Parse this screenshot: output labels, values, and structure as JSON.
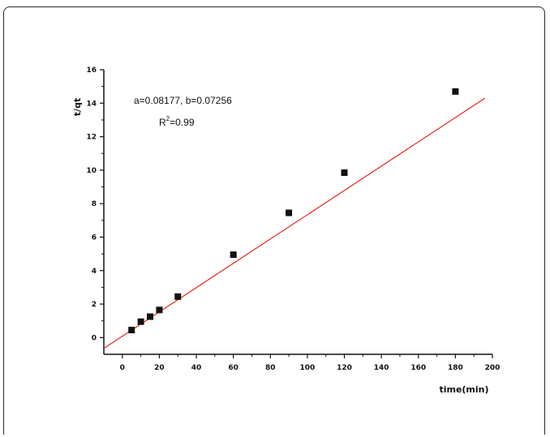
{
  "chart_data": {
    "type": "scatter",
    "xlabel": "time(min)",
    "ylabel": "t/qt",
    "xlim": [
      -10,
      200
    ],
    "ylim": [
      -1,
      16
    ],
    "x_ticks": [
      0,
      20,
      40,
      60,
      80,
      100,
      120,
      140,
      160,
      180,
      200
    ],
    "y_ticks": [
      0,
      2,
      4,
      6,
      8,
      10,
      12,
      14,
      16
    ],
    "series": [
      {
        "marker": "square",
        "color": "#111111",
        "x": [
          5,
          10,
          15,
          20,
          30,
          60,
          90,
          120,
          180
        ],
        "y": [
          0.45,
          0.95,
          1.25,
          1.65,
          2.45,
          4.95,
          7.45,
          9.85,
          14.7
        ]
      }
    ],
    "fit": {
      "color": "#e8291c",
      "intercept": 0.08177,
      "slope": 0.07256,
      "x_range": [
        -10,
        196
      ]
    },
    "annotations": {
      "line1": "a=0.08177, b=0.07256",
      "r2_prefix": "R",
      "r2_sup": "2",
      "r2_rest": "=0.99"
    }
  }
}
